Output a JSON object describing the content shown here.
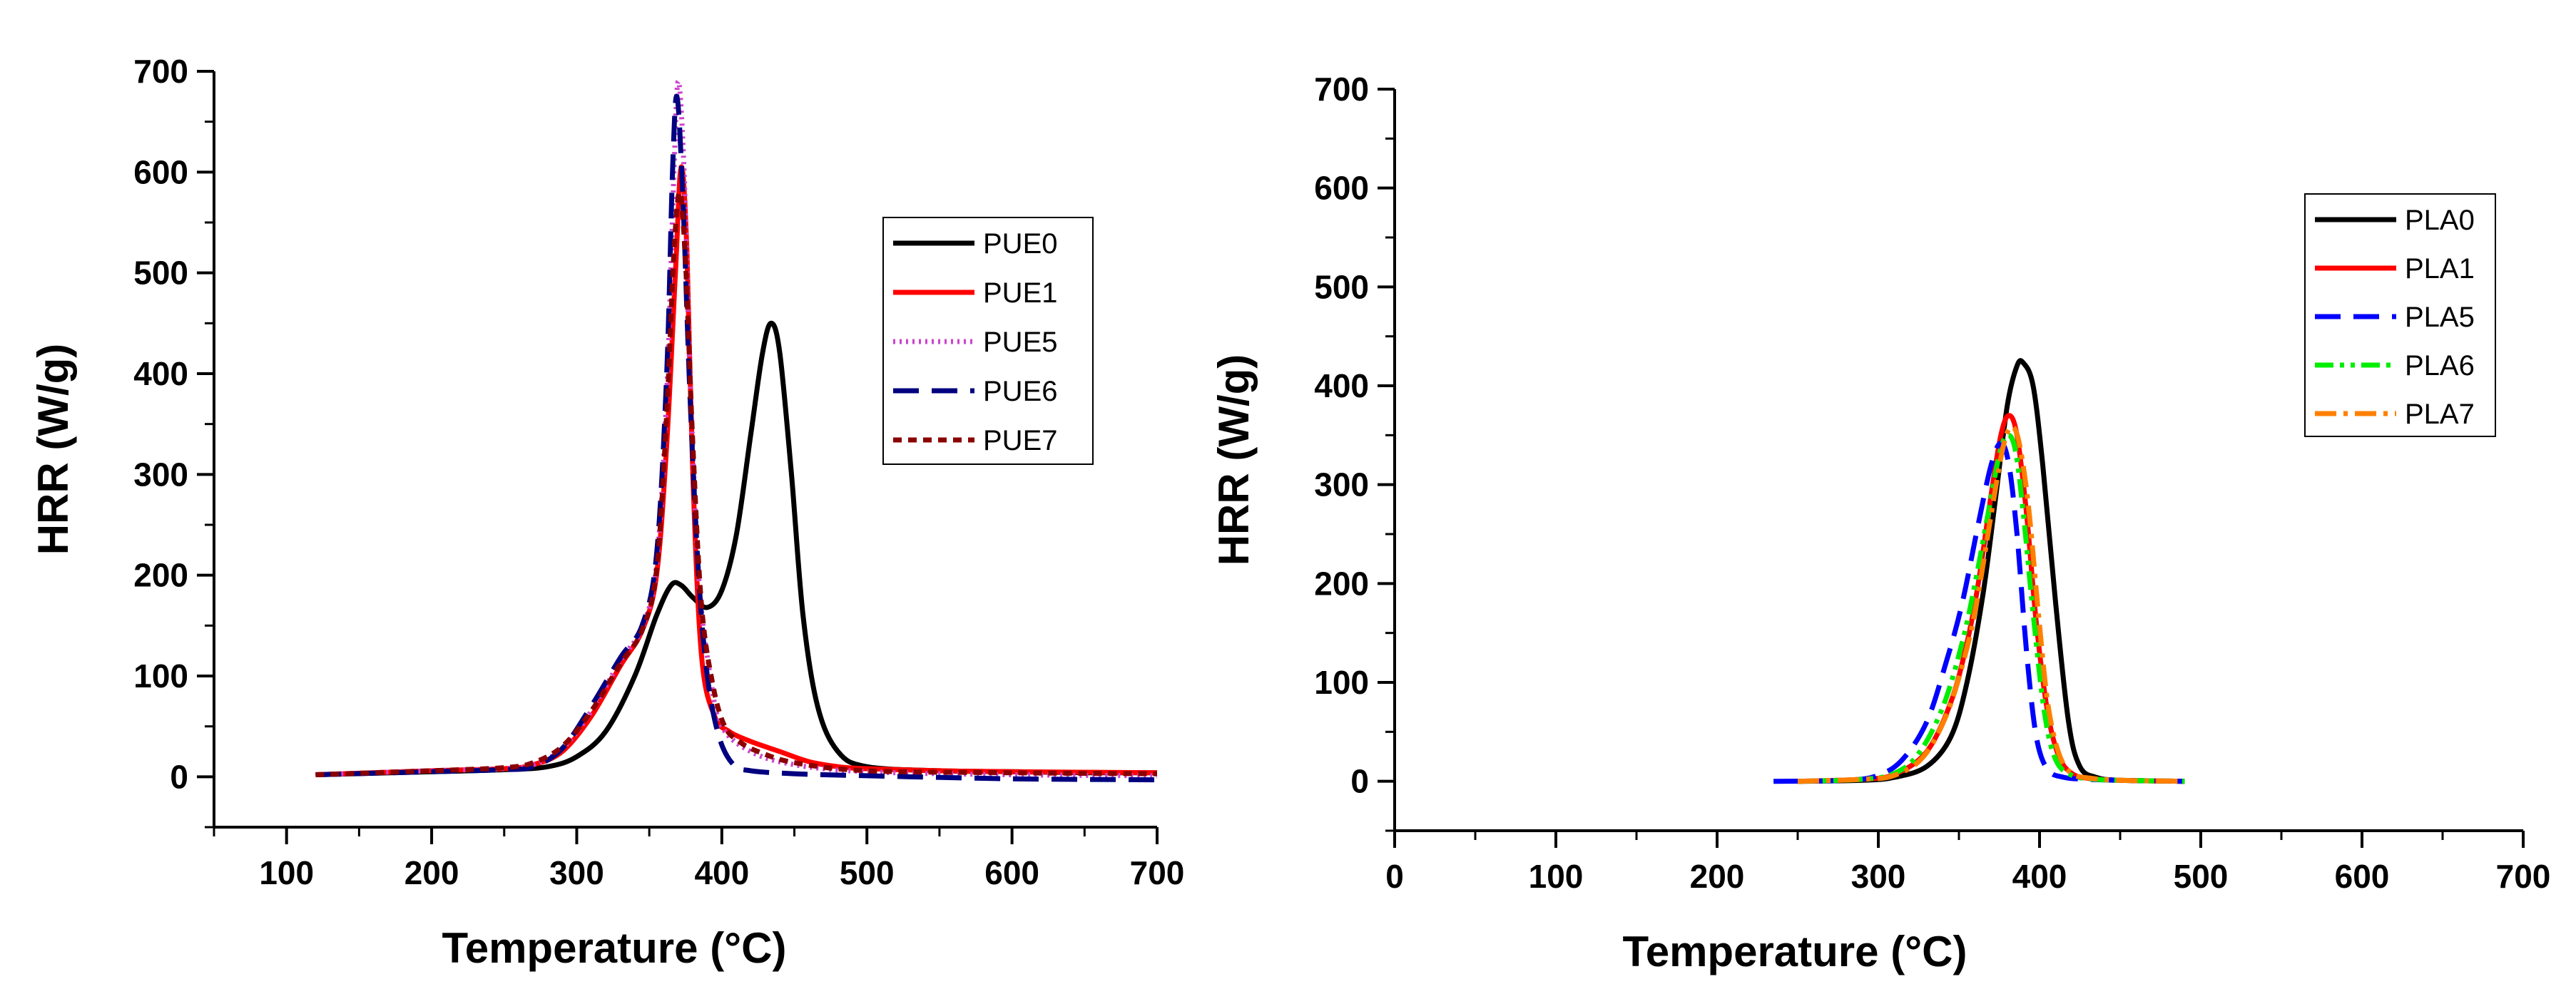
{
  "chart_data": [
    {
      "type": "line",
      "title": "",
      "xlabel": "Temperature (°C)",
      "ylabel": "HRR (W/g)",
      "xlim": [
        50,
        700
      ],
      "ylim": [
        -50,
        700
      ],
      "x_ticks": [
        100,
        200,
        300,
        400,
        500,
        600,
        700
      ],
      "y_ticks": [
        0,
        100,
        200,
        300,
        400,
        500,
        600,
        700
      ],
      "grid": false,
      "legend_position": "top-right",
      "series": [
        {
          "name": "PUE0",
          "color": "#000000",
          "dash": "solid",
          "x": [
            120,
            200,
            250,
            280,
            300,
            320,
            340,
            355,
            365,
            372,
            380,
            390,
            400,
            410,
            420,
            428,
            434,
            440,
            448,
            456,
            466,
            480,
            500,
            550,
            600,
            650,
            700
          ],
          "y": [
            2,
            5,
            7,
            10,
            20,
            45,
            100,
            160,
            190,
            190,
            178,
            168,
            185,
            240,
            340,
            420,
            450,
            420,
            300,
            160,
            70,
            25,
            10,
            6,
            5,
            4,
            4
          ]
        },
        {
          "name": "PUE1",
          "color": "#ff0000",
          "dash": "solid",
          "x": [
            120,
            200,
            250,
            270,
            290,
            310,
            330,
            345,
            355,
            362,
            368,
            372,
            376,
            380,
            386,
            395,
            405,
            420,
            440,
            460,
            480,
            500,
            550,
            600,
            700
          ],
          "y": [
            2,
            6,
            8,
            12,
            25,
            60,
            110,
            145,
            200,
            330,
            500,
            605,
            520,
            300,
            120,
            60,
            45,
            35,
            25,
            15,
            10,
            8,
            6,
            5,
            4
          ]
        },
        {
          "name": "PUE5",
          "color": "#cc44cc",
          "dash": "dotted",
          "x": [
            120,
            200,
            250,
            270,
            290,
            310,
            330,
            345,
            355,
            362,
            367,
            370,
            374,
            378,
            384,
            392,
            400,
            420,
            450,
            500,
            600,
            700
          ],
          "y": [
            2,
            6,
            8,
            12,
            28,
            65,
            115,
            148,
            210,
            380,
            600,
            690,
            600,
            400,
            200,
            100,
            50,
            25,
            12,
            5,
            2,
            1
          ]
        },
        {
          "name": "PUE6",
          "color": "#000080",
          "dash": "dashed",
          "x": [
            120,
            200,
            250,
            270,
            290,
            310,
            330,
            345,
            355,
            362,
            366,
            369,
            373,
            378,
            384,
            390,
            398,
            408,
            420,
            450,
            500,
            600,
            700
          ],
          "y": [
            2,
            5,
            7,
            10,
            28,
            70,
            118,
            150,
            220,
            400,
            600,
            675,
            580,
            380,
            200,
            100,
            40,
            12,
            6,
            3,
            1,
            -2,
            -3
          ]
        },
        {
          "name": "PUE7",
          "color": "#8b0000",
          "dash": "short-dash",
          "x": [
            120,
            200,
            250,
            270,
            290,
            310,
            330,
            345,
            355,
            362,
            367,
            371,
            375,
            380,
            386,
            394,
            402,
            412,
            425,
            450,
            500,
            600,
            700
          ],
          "y": [
            2,
            6,
            9,
            14,
            30,
            65,
            112,
            145,
            205,
            360,
            520,
            580,
            510,
            330,
            170,
            90,
            50,
            35,
            25,
            14,
            6,
            4,
            3
          ]
        }
      ]
    },
    {
      "type": "line",
      "title": "",
      "xlabel": "Temperature (°C)",
      "ylabel": "HRR (W/g)",
      "xlim": [
        0,
        700
      ],
      "ylim": [
        -50,
        700
      ],
      "x_ticks": [
        0,
        100,
        200,
        300,
        400,
        500,
        600,
        700
      ],
      "y_ticks": [
        0,
        100,
        200,
        300,
        400,
        500,
        600,
        700
      ],
      "grid": false,
      "legend_position": "top-right",
      "series": [
        {
          "name": "PLA0",
          "color": "#000000",
          "dash": "solid",
          "x": [
            250,
            290,
            310,
            330,
            345,
            355,
            365,
            373,
            380,
            386,
            390,
            396,
            402,
            410,
            418,
            425,
            435,
            450,
            490
          ],
          "y": [
            0,
            1,
            4,
            15,
            45,
            100,
            190,
            290,
            380,
            420,
            423,
            400,
            320,
            180,
            60,
            15,
            4,
            1,
            0
          ]
        },
        {
          "name": "PLA1",
          "color": "#ff0000",
          "dash": "solid",
          "x": [
            250,
            290,
            310,
            330,
            345,
            355,
            362,
            370,
            376,
            381,
            386,
            392,
            398,
            405,
            412,
            420,
            430,
            450,
            490
          ],
          "y": [
            0,
            2,
            7,
            30,
            80,
            140,
            200,
            290,
            350,
            370,
            350,
            270,
            160,
            70,
            25,
            8,
            3,
            1,
            0
          ]
        },
        {
          "name": "PLA5",
          "color": "#0000ff",
          "dash": "dashed",
          "x": [
            235,
            280,
            300,
            315,
            330,
            342,
            352,
            362,
            370,
            376,
            381,
            386,
            392,
            398,
            405,
            415,
            430,
            450,
            490
          ],
          "y": [
            0,
            1,
            6,
            22,
            60,
            120,
            180,
            260,
            320,
            342,
            320,
            250,
            130,
            45,
            12,
            4,
            2,
            1,
            0
          ]
        },
        {
          "name": "PLA6",
          "color": "#00ee00",
          "dash": "dash-dot-dot",
          "x": [
            250,
            290,
            310,
            325,
            340,
            352,
            360,
            368,
            375,
            380,
            385,
            390,
            396,
            403,
            410,
            420,
            435,
            450,
            490
          ],
          "y": [
            0,
            2,
            8,
            28,
            75,
            140,
            200,
            270,
            330,
            350,
            335,
            270,
            170,
            70,
            22,
            6,
            2,
            1,
            0
          ]
        },
        {
          "name": "PLA7",
          "color": "#ff8000",
          "dash": "dash-dot",
          "x": [
            250,
            290,
            310,
            328,
            343,
            355,
            362,
            370,
            377,
            382,
            387,
            393,
            399,
            405,
            412,
            420,
            432,
            450,
            490
          ],
          "y": [
            0,
            2,
            6,
            25,
            70,
            135,
            190,
            270,
            335,
            358,
            345,
            280,
            175,
            80,
            28,
            8,
            3,
            1,
            0
          ]
        }
      ]
    }
  ]
}
